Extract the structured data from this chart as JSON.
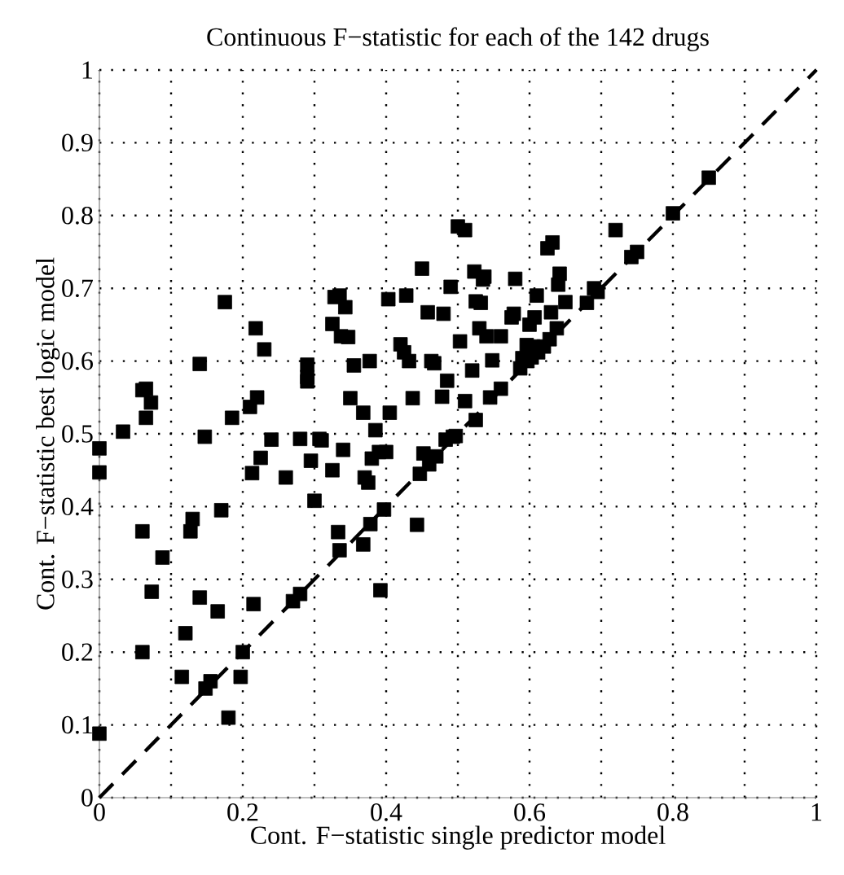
{
  "chart_data": {
    "type": "scatter",
    "title": "Continuous F−statistic for each of the 142 drugs",
    "xlabel": "Cont. F−statistic single predictor model",
    "ylabel": "Cont. F−statistic best logic model",
    "xlim": [
      0,
      1
    ],
    "ylim": [
      0,
      1
    ],
    "xticks": [
      0,
      {
        "value": 0.1,
        "label": null
      },
      0.2,
      {
        "value": 0.3,
        "label": null
      },
      0.4,
      {
        "value": 0.5,
        "label": null
      },
      0.6,
      {
        "value": 0.7,
        "label": null
      },
      0.8,
      {
        "value": 0.9,
        "label": null
      },
      1
    ],
    "yticks": [
      0,
      0.1,
      0.2,
      0.3,
      0.4,
      0.5,
      0.6,
      0.7,
      0.8,
      0.9,
      1
    ],
    "grid": true,
    "marker": "square",
    "series": [
      {
        "color": "#000000",
        "x": [
          0,
          0,
          0,
          0.033,
          0.06,
          0.065,
          0.065,
          0.072,
          0.06,
          0.06,
          0.073,
          0.088,
          0.115,
          0.12,
          0.127,
          0.13,
          0.14,
          0.147,
          0.14,
          0.148,
          0.155,
          0.165,
          0.17,
          0.175,
          0.18,
          0.185,
          0.197,
          0.2,
          0.21,
          0.213,
          0.215,
          0.218,
          0.22,
          0.225,
          0.23,
          0.24,
          0.26,
          0.27,
          0.28,
          0.28,
          0.29,
          0.29,
          0.29,
          0.295,
          0.3,
          0.307,
          0.31,
          0.325,
          0.325,
          0.328,
          0.333,
          0.335,
          0.335,
          0.337,
          0.34,
          0.343,
          0.347,
          0.35,
          0.355,
          0.368,
          0.368,
          0.37,
          0.375,
          0.378,
          0.377,
          0.38,
          0.385,
          0.39,
          0.392,
          0.397,
          0.4,
          0.403,
          0.405,
          0.42,
          0.425,
          0.428,
          0.432,
          0.437,
          0.443,
          0.447,
          0.45,
          0.452,
          0.458,
          0.46,
          0.463,
          0.467,
          0.47,
          0.478,
          0.48,
          0.483,
          0.485,
          0.49,
          0.493,
          0.497,
          0.5,
          0.503,
          0.51,
          0.51,
          0.52,
          0.523,
          0.525,
          0.525,
          0.53,
          0.532,
          0.535,
          0.537,
          0.54,
          0.545,
          0.548,
          0.56,
          0.56,
          0.575,
          0.578,
          0.58,
          0.587,
          0.59,
          0.596,
          0.597,
          0.6,
          0.603,
          0.605,
          0.607,
          0.61,
          0.612,
          0.62,
          0.625,
          0.628,
          0.63,
          0.632,
          0.638,
          0.64,
          0.642,
          0.65,
          0.68,
          0.69,
          0.695,
          0.72,
          0.742,
          0.75,
          0.8,
          0.85
        ],
        "values": [
          0.48,
          0.447,
          0.088,
          0.503,
          0.56,
          0.562,
          0.522,
          0.543,
          0.366,
          0.2,
          0.283,
          0.33,
          0.166,
          0.226,
          0.366,
          0.383,
          0.596,
          0.496,
          0.275,
          0.15,
          0.16,
          0.256,
          0.395,
          0.681,
          0.11,
          0.522,
          0.166,
          0.2,
          0.537,
          0.446,
          0.266,
          0.645,
          0.55,
          0.467,
          0.616,
          0.492,
          0.44,
          0.27,
          0.493,
          0.28,
          0.595,
          0.578,
          0.572,
          0.463,
          0.408,
          0.493,
          0.491,
          0.651,
          0.45,
          0.688,
          0.365,
          0.34,
          0.69,
          0.634,
          0.478,
          0.674,
          0.633,
          0.549,
          0.594,
          0.529,
          0.348,
          0.44,
          0.433,
          0.376,
          0.6,
          0.466,
          0.505,
          0.475,
          0.285,
          0.396,
          0.475,
          0.685,
          0.529,
          0.623,
          0.612,
          0.69,
          0.6,
          0.549,
          0.375,
          0.445,
          0.727,
          0.473,
          0.667,
          0.458,
          0.6,
          0.597,
          0.469,
          0.551,
          0.665,
          0.492,
          0.573,
          0.702,
          0.496,
          0.497,
          0.785,
          0.627,
          0.78,
          0.545,
          0.587,
          0.723,
          0.519,
          0.682,
          0.645,
          0.68,
          0.712,
          0.716,
          0.634,
          0.55,
          0.601,
          0.634,
          0.562,
          0.66,
          0.665,
          0.713,
          0.59,
          0.604,
          0.622,
          0.6,
          0.65,
          0.605,
          0.62,
          0.66,
          0.69,
          0.612,
          0.62,
          0.755,
          0.63,
          0.667,
          0.763,
          0.645,
          0.705,
          0.72,
          0.681,
          0.68,
          0.7,
          0.695,
          0.78,
          0.743,
          0.75,
          0.803,
          0.852
        ]
      },
      {
        "type": "line",
        "color": "#000000",
        "line_style": "dashed",
        "marker": "none",
        "x": [
          0,
          1
        ],
        "values": [
          0,
          1
        ]
      }
    ]
  }
}
